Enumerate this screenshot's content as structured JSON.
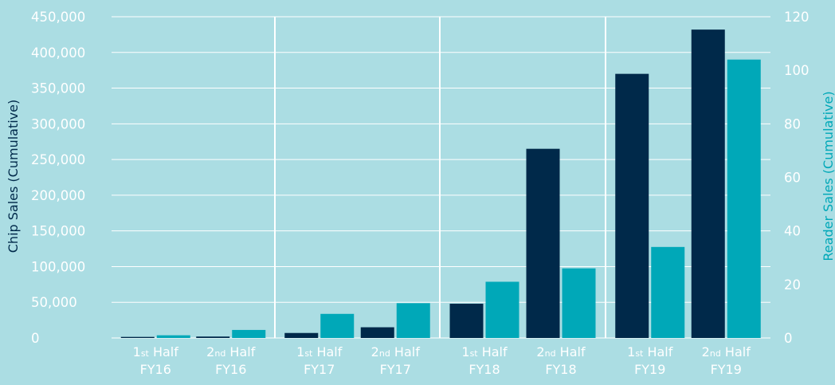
{
  "colors": {
    "background": "#abdde3",
    "chip": "#00294a",
    "reader": "#00a8b8",
    "grid": "#ffffff",
    "text": "#ffffff",
    "y2_title": "#00a8b8",
    "y1_title": "#00294a"
  },
  "chart_data": {
    "type": "bar",
    "title": "",
    "categories": [
      {
        "ordinal": "1",
        "suffix": "st",
        "half": "Half",
        "year": "FY16"
      },
      {
        "ordinal": "2",
        "suffix": "nd",
        "half": "Half",
        "year": "FY16"
      },
      {
        "ordinal": "1",
        "suffix": "st",
        "half": "Half",
        "year": "FY17"
      },
      {
        "ordinal": "2",
        "suffix": "nd",
        "half": "Half",
        "year": "FY17"
      },
      {
        "ordinal": "1",
        "suffix": "st",
        "half": "Half",
        "year": "FY18"
      },
      {
        "ordinal": "2",
        "suffix": "nd",
        "half": "Half",
        "year": "FY18"
      },
      {
        "ordinal": "1",
        "suffix": "st",
        "half": "Half",
        "year": "FY19"
      },
      {
        "ordinal": "2",
        "suffix": "nd",
        "half": "Half",
        "year": "FY19"
      }
    ],
    "series": [
      {
        "name": "Chip Sales (Cumulative)",
        "axis": "left",
        "values": [
          1500,
          2000,
          7000,
          15000,
          48000,
          265000,
          370000,
          432000
        ]
      },
      {
        "name": "Reader Sales (Cumulative)",
        "axis": "right",
        "values": [
          1,
          3,
          9,
          13,
          21,
          26,
          34,
          104
        ]
      }
    ],
    "y1": {
      "title": "Chip Sales (Cumulative)",
      "min": 0,
      "max": 450000,
      "ticks": [
        "0",
        "50,000",
        "100,000",
        "150,000",
        "200,000",
        "250,000",
        "300,000",
        "350,000",
        "400,000",
        "450,000"
      ]
    },
    "y2": {
      "title": "Reader Sales (Cumulative)",
      "min": 0,
      "max": 120,
      "ticks": [
        "0",
        "20",
        "40",
        "60",
        "80",
        "100",
        "120"
      ]
    },
    "grid": true,
    "group_separators": true,
    "legend": "none"
  }
}
